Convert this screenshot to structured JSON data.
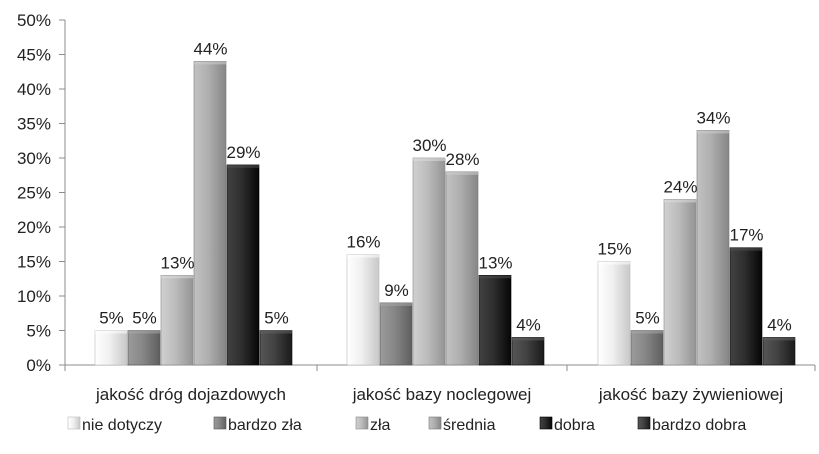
{
  "chart_data": {
    "type": "bar",
    "categories": [
      "jakość dróg dojazdowych",
      "jakość bazy noclegowej",
      "jakość bazy żywieniowej"
    ],
    "series": [
      {
        "name": "nie dotyczy",
        "values": [
          5,
          16,
          15
        ],
        "color": "#e8e8e8"
      },
      {
        "name": "bardzo zła",
        "values": [
          5,
          9,
          5
        ],
        "color": "#7f7f7f"
      },
      {
        "name": "zła",
        "values": [
          13,
          30,
          24
        ],
        "color": "#b4b4b4"
      },
      {
        "name": "średnia",
        "values": [
          44,
          28,
          34
        ],
        "color": "#a6a6a6"
      },
      {
        "name": "dobra",
        "values": [
          29,
          13,
          17
        ],
        "color": "#262626"
      },
      {
        "name": "bardzo dobra",
        "values": [
          5,
          4,
          4
        ],
        "color": "#3a3a3a"
      }
    ],
    "data_labels": [
      [
        "5%",
        "16%",
        "15%"
      ],
      [
        "5%",
        "9%",
        "5%"
      ],
      [
        "13%",
        "30%",
        "24%"
      ],
      [
        "44%",
        "28%",
        "34%"
      ],
      [
        "29%",
        "13%",
        "17%"
      ],
      [
        "5%",
        "4%",
        "4%"
      ]
    ],
    "yticks": [
      "0%",
      "5%",
      "10%",
      "15%",
      "20%",
      "25%",
      "30%",
      "35%",
      "40%",
      "45%",
      "50%"
    ],
    "ylim": [
      0,
      50
    ],
    "ytick_step": 5,
    "grid": false,
    "legend_position": "bottom"
  }
}
